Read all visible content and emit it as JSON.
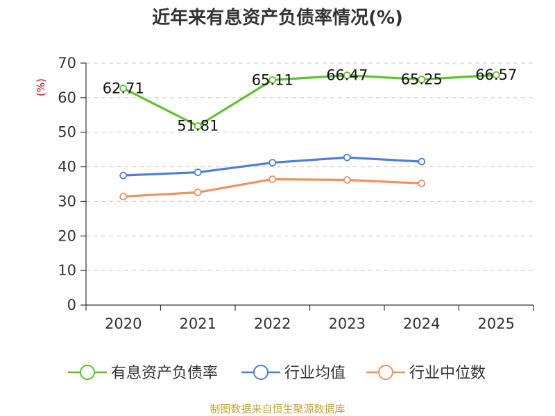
{
  "chart_data": {
    "type": "line",
    "title": "近年来有息资产负债率情况(%)",
    "ylabel": "(%)",
    "xlabel": "",
    "categories": [
      "2020",
      "2021",
      "2022",
      "2023",
      "2024",
      "2025"
    ],
    "ylim": [
      0,
      70
    ],
    "yticks": [
      0,
      10,
      20,
      30,
      40,
      50,
      60,
      70
    ],
    "grid": true,
    "legend_position": "bottom",
    "series": [
      {
        "name": "有息资产负债率",
        "color": "#5cc22a",
        "show_labels": true,
        "values": [
          62.71,
          51.81,
          65.11,
          66.47,
          65.25,
          66.57
        ],
        "labels": [
          "62.71",
          "51.81",
          "65.11",
          "66.47",
          "65.25",
          "66.57"
        ]
      },
      {
        "name": "行业均值",
        "color": "#4a7fdc",
        "show_labels": false,
        "values": [
          37.5,
          38.4,
          41.2,
          42.7,
          41.5,
          null
        ]
      },
      {
        "name": "行业中位数",
        "color": "#f5905a",
        "show_labels": false,
        "values": [
          31.4,
          32.6,
          36.4,
          36.2,
          35.2,
          null
        ]
      }
    ],
    "source": "制图数据来自恒生聚源数据库"
  }
}
